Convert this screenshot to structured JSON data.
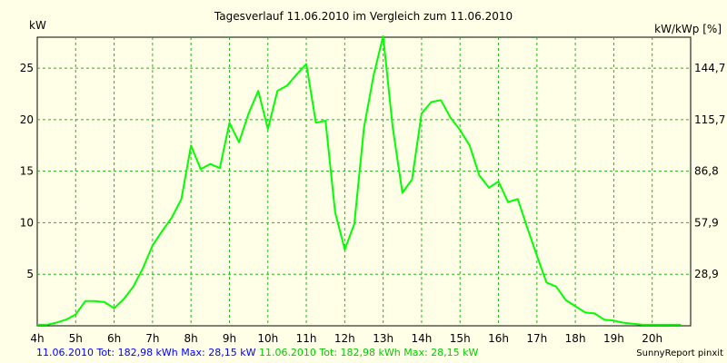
{
  "chart_data": {
    "type": "line",
    "title": "Tagesverlauf 11.06.2010 im Vergleich zum 11.06.2010",
    "ylabel_left": "kW",
    "ylabel_right": "kW/kWp [%]",
    "x_ticks": [
      "4h",
      "5h",
      "6h",
      "7h",
      "8h",
      "9h",
      "10h",
      "11h",
      "12h",
      "13h",
      "14h",
      "15h",
      "16h",
      "17h",
      "18h",
      "19h",
      "20h"
    ],
    "xlim": [
      4,
      21
    ],
    "ylim": [
      0,
      28
    ],
    "y_ticks_left": [
      5,
      10,
      15,
      20,
      25
    ],
    "y_ticks_right": [
      "28,9",
      "57,9",
      "86,8",
      "115,7",
      "144,7"
    ],
    "grid": true,
    "series": [
      {
        "color": "#00ff00",
        "x": [
          4.0,
          4.25,
          4.5,
          4.75,
          5.0,
          5.25,
          5.5,
          5.75,
          6.0,
          6.25,
          6.5,
          6.75,
          7.0,
          7.25,
          7.5,
          7.75,
          8.0,
          8.25,
          8.5,
          8.75,
          9.0,
          9.25,
          9.5,
          9.75,
          10.0,
          10.25,
          10.5,
          10.75,
          11.0,
          11.25,
          11.5,
          11.75,
          12.0,
          12.25,
          12.5,
          12.75,
          13.0,
          13.25,
          13.5,
          13.75,
          14.0,
          14.25,
          14.5,
          14.75,
          15.0,
          15.25,
          15.5,
          15.75,
          16.0,
          16.25,
          16.5,
          16.75,
          17.0,
          17.25,
          17.5,
          17.75,
          18.0,
          18.25,
          18.5,
          18.75,
          19.0,
          19.25,
          19.5,
          19.75,
          20.0,
          20.25,
          20.5,
          20.75
        ],
        "y": [
          0.1,
          0.1,
          0.3,
          0.6,
          1.1,
          2.4,
          2.4,
          2.3,
          1.7,
          2.6,
          3.8,
          5.6,
          7.8,
          9.2,
          10.5,
          12.3,
          17.5,
          15.2,
          15.7,
          15.3,
          19.7,
          17.8,
          20.6,
          22.8,
          19.1,
          22.8,
          23.3,
          24.4,
          25.4,
          19.7,
          19.9,
          11.0,
          7.4,
          9.9,
          19.2,
          24.3,
          28.1,
          19.2,
          12.9,
          14.2,
          20.6,
          21.7,
          21.9,
          20.2,
          19.0,
          17.5,
          14.6,
          13.4,
          14.0,
          12.0,
          12.3,
          9.5,
          6.8,
          4.2,
          3.8,
          2.5,
          1.9,
          1.3,
          1.2,
          0.6,
          0.5,
          0.3,
          0.2,
          0.1,
          0.1,
          0.1,
          0.1,
          0.1
        ]
      }
    ]
  },
  "footer": {
    "line1_text": "11.06.2010 Tot: 182,98 kWh Max: 28,15 kW",
    "line1_color": "#0000ff",
    "line2_text": " 11.06.2010 Tot: 182,98 kWh Max: 28,15 kW",
    "line2_color": "#00cc00"
  },
  "brand": "SunnyReport pinxit"
}
